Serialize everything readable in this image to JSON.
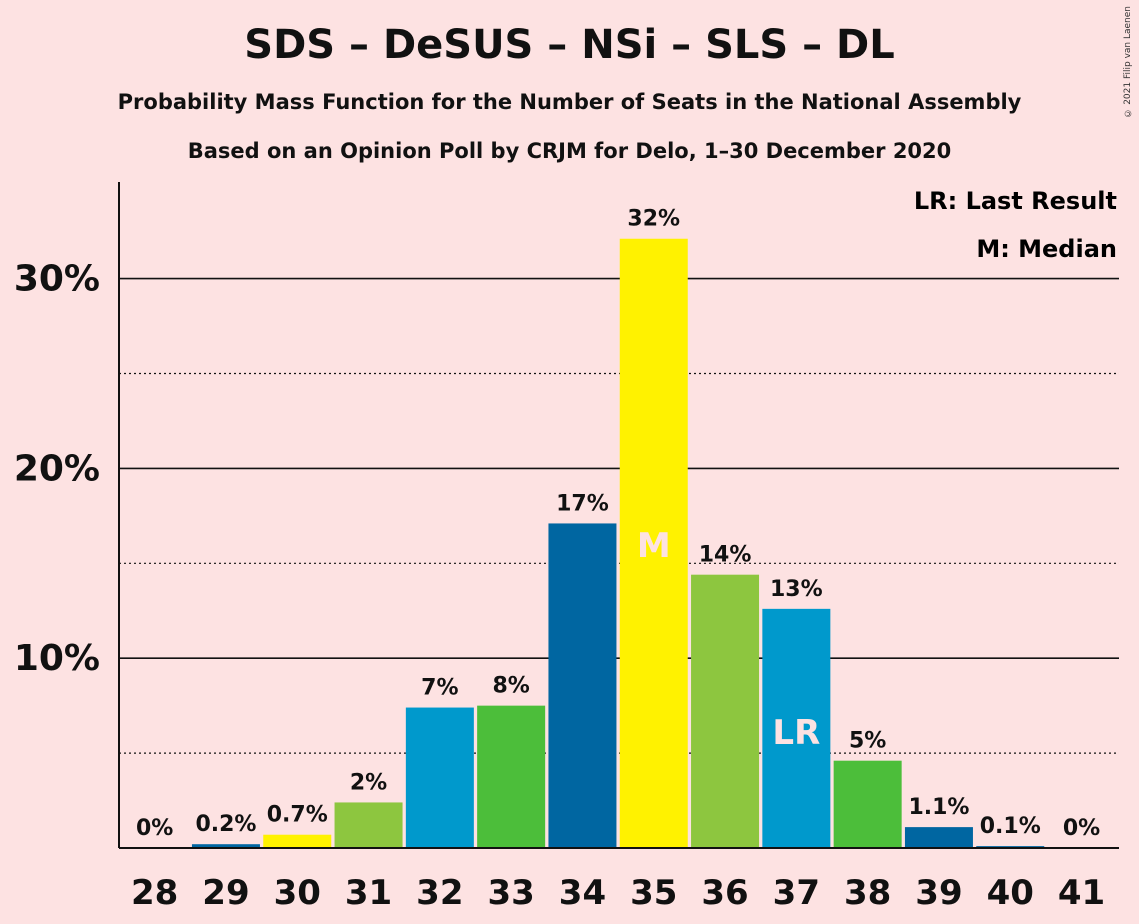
{
  "title": "SDS – DeSUS – NSi – SLS – DL",
  "subtitle1": "Probability Mass Function for the Number of Seats in the National Assembly",
  "subtitle2": "Based on an Opinion Poll by CRJM for Delo, 1–30 December 2020",
  "copyright": "© 2021 Filip van Laenen",
  "legend": {
    "lr": "LR: Last Result",
    "m": "M: Median"
  },
  "chart_data": {
    "type": "bar",
    "categories": [
      "28",
      "29",
      "30",
      "31",
      "32",
      "33",
      "34",
      "35",
      "36",
      "37",
      "38",
      "39",
      "40",
      "41"
    ],
    "values": [
      0,
      0.2,
      0.7,
      2.4,
      7.4,
      7.5,
      17.1,
      32.1,
      14.4,
      12.6,
      4.6,
      1.1,
      0.1,
      0
    ],
    "data_labels": [
      "0%",
      "0.2%",
      "0.7%",
      "2%",
      "7%",
      "8%",
      "17%",
      "32%",
      "14%",
      "13%",
      "5%",
      "1.1%",
      "0.1%",
      "0%"
    ],
    "colors": [
      "#0066a1",
      "#0066a1",
      "#fff200",
      "#8dc63f",
      "#0099cc",
      "#4cbe3a",
      "#0066a1",
      "#fff200",
      "#8dc63f",
      "#0099cc",
      "#4cbe3a",
      "#0066a1",
      "#0066a1",
      "#0066a1"
    ],
    "ylim": [
      0,
      35
    ],
    "y_ticks": [
      {
        "value": 10,
        "label": "10%"
      },
      {
        "value": 20,
        "label": "20%"
      },
      {
        "value": 30,
        "label": "30%"
      }
    ],
    "minor_gridlines": [
      5,
      15,
      25
    ],
    "markers": [
      {
        "category": "35",
        "text": "M"
      },
      {
        "category": "37",
        "text": "LR"
      }
    ]
  }
}
